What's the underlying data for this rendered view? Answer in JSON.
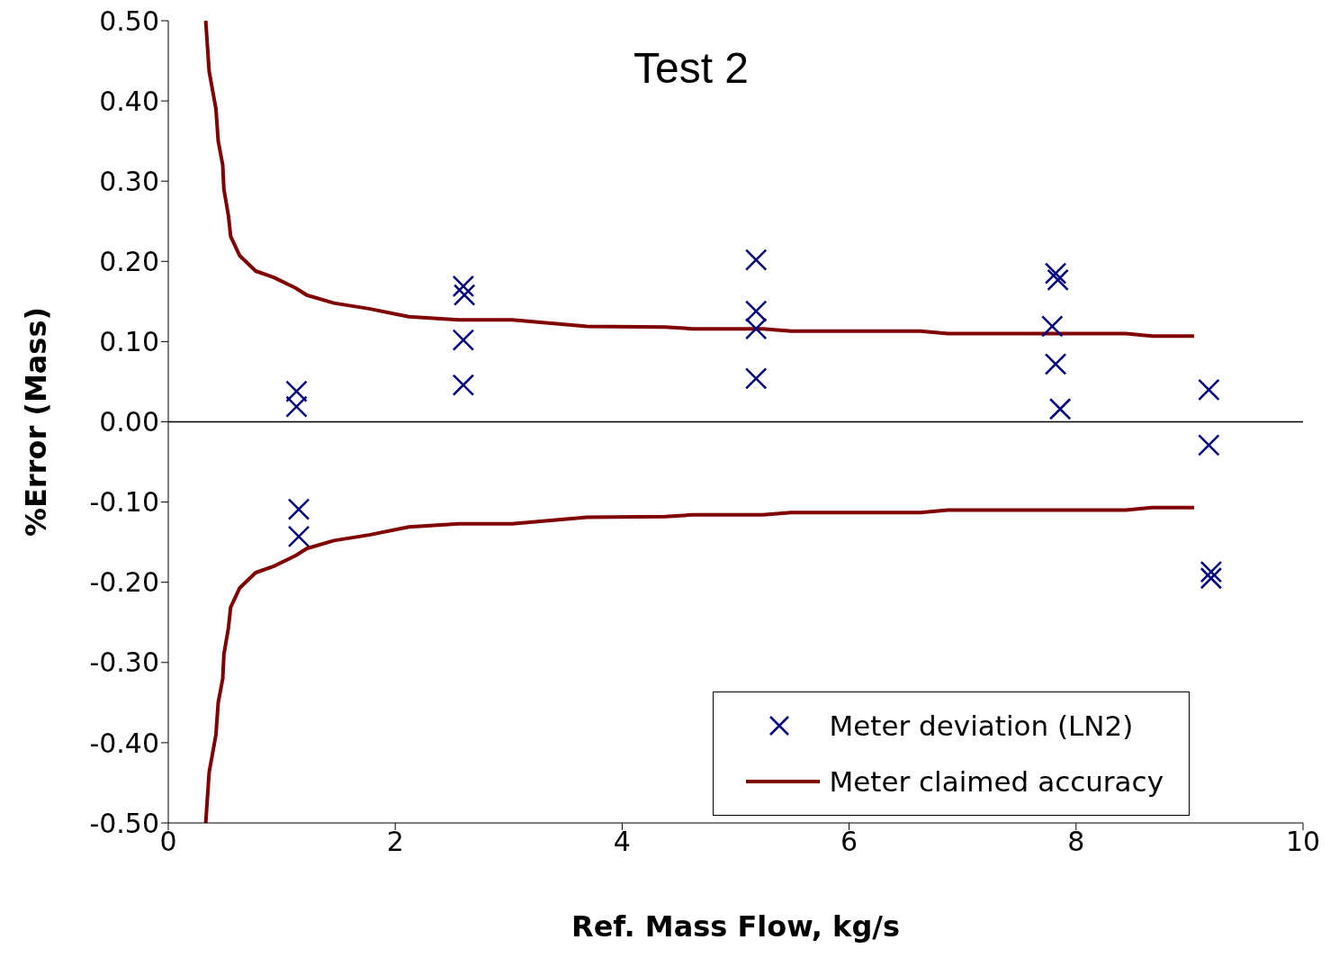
{
  "chart_data": {
    "type": "scatter",
    "title": "Test 2",
    "xlabel": "Ref. Mass Flow, kg/s",
    "ylabel": "%Error (Mass)",
    "xlim": [
      0,
      10
    ],
    "xticks": [
      0,
      2,
      4,
      6,
      8,
      10
    ],
    "ylim": [
      -0.5,
      0.5
    ],
    "yticks": [
      {
        "value": -0.5,
        "label": "-0.50"
      },
      {
        "value": -0.4,
        "label": "-0.40"
      },
      {
        "value": -0.3,
        "label": "-0.30"
      },
      {
        "value": -0.2,
        "label": "-0.20"
      },
      {
        "value": -0.1,
        "label": "-0.10"
      },
      {
        "value": 0,
        "label": "0.00"
      },
      {
        "value": 0.1,
        "label": "0.10"
      },
      {
        "value": 0.2,
        "label": "0.20"
      },
      {
        "value": 0.3,
        "label": "0.30"
      },
      {
        "value": 0.4,
        "label": "0.40"
      },
      {
        "value": 0.5,
        "label": "0.50"
      }
    ],
    "ref_lines": [
      {
        "axis": "y",
        "value": 0,
        "color": "#000000"
      }
    ],
    "legend": "bottom right",
    "series": [
      {
        "name": "Meter deviation (LN2)",
        "marker": "cross",
        "color": "#000080",
        "x": [
          1.13,
          1.13,
          1.15,
          1.15,
          2.6,
          2.61,
          2.6,
          2.6,
          5.18,
          5.18,
          5.18,
          5.18,
          7.82,
          7.84,
          7.79,
          7.82,
          7.86,
          9.17,
          9.17,
          9.19,
          9.19
        ],
        "values": [
          0.038,
          0.019,
          -0.109,
          -0.143,
          0.169,
          0.158,
          0.102,
          0.046,
          0.202,
          0.138,
          0.116,
          0.054,
          0.185,
          0.177,
          0.119,
          0.072,
          0.016,
          0.04,
          -0.029,
          -0.187,
          -0.195
        ]
      },
      {
        "name": "Meter claimed accuracy",
        "type": "line",
        "color": "#800000",
        "x": [
          0.33,
          0.36,
          0.42,
          0.44,
          0.48,
          0.49,
          0.53,
          0.55,
          0.63,
          0.77,
          0.93,
          1.12,
          1.22,
          1.46,
          1.77,
          2.12,
          2.56,
          3.03,
          3.69,
          4.38,
          4.62,
          5.24,
          5.49,
          6.63,
          6.87,
          8.44,
          8.67,
          9.04
        ],
        "values": [
          0.5,
          0.437,
          0.39,
          0.35,
          0.32,
          0.29,
          0.257,
          0.231,
          0.207,
          0.188,
          0.18,
          0.167,
          0.158,
          0.148,
          0.141,
          0.131,
          0.127,
          0.127,
          0.119,
          0.118,
          0.116,
          0.116,
          0.113,
          0.113,
          0.11,
          0.11,
          0.107,
          0.107
        ]
      },
      {
        "type": "line",
        "color": "#800000",
        "x": [
          0.33,
          0.36,
          0.42,
          0.44,
          0.48,
          0.49,
          0.53,
          0.55,
          0.63,
          0.77,
          0.93,
          1.12,
          1.22,
          1.46,
          1.77,
          2.12,
          2.56,
          3.03,
          3.69,
          4.38,
          4.62,
          5.24,
          5.49,
          6.63,
          6.87,
          8.44,
          8.67,
          9.04
        ],
        "values": [
          -0.5,
          -0.437,
          -0.39,
          -0.35,
          -0.32,
          -0.29,
          -0.257,
          -0.231,
          -0.207,
          -0.188,
          -0.18,
          -0.167,
          -0.158,
          -0.148,
          -0.141,
          -0.131,
          -0.127,
          -0.127,
          -0.119,
          -0.118,
          -0.116,
          -0.116,
          -0.113,
          -0.113,
          -0.11,
          -0.11,
          -0.107,
          -0.107
        ]
      }
    ]
  }
}
